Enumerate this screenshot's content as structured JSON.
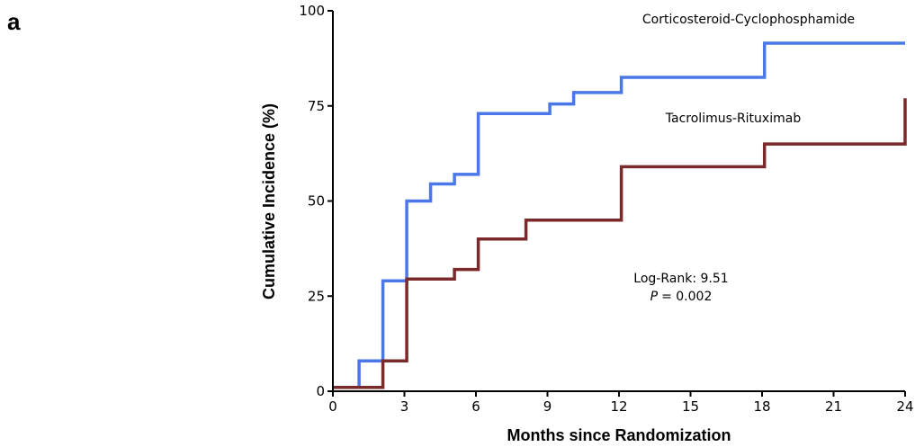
{
  "panel_label": "a",
  "colors": {
    "corticosteroid_cyclophosphamide": "#4A78E8",
    "tacrolimus_rituximab": "#7A2A2A"
  },
  "chart_data": {
    "type": "line",
    "step": true,
    "xlabel": "Months since Randomization",
    "ylabel": "Cumulative Incidence (%)",
    "xlim": [
      0,
      24
    ],
    "ylim": [
      0,
      100
    ],
    "xticks": [
      0,
      3,
      6,
      9,
      12,
      15,
      18,
      21,
      24
    ],
    "yticks": [
      0,
      25,
      50,
      75,
      100
    ],
    "grid": false,
    "series": [
      {
        "name": "Corticosteroid-Cyclophosphamide",
        "color": "#4A78E8",
        "x": [
          0,
          1.1,
          2.1,
          3.1,
          4.1,
          5.1,
          6.1,
          9.1,
          10.1,
          12.1,
          18.1,
          24
        ],
        "y": [
          1,
          8,
          29,
          50,
          54.5,
          57,
          73,
          75.5,
          78.5,
          82.5,
          91.5,
          91.5
        ]
      },
      {
        "name": "Tacrolimus-Rituximab",
        "color": "#7A2A2A",
        "x": [
          0,
          2.1,
          3.1,
          5.1,
          6.1,
          8.1,
          12.1,
          18.1,
          24
        ],
        "y": [
          1,
          8,
          29.5,
          32,
          40,
          45,
          59,
          65,
          77
        ]
      }
    ],
    "annotations": {
      "log_rank_label": "Log-Rank: 9.51",
      "p_symbol": "P",
      "p_value_text": "= 0.002"
    }
  }
}
